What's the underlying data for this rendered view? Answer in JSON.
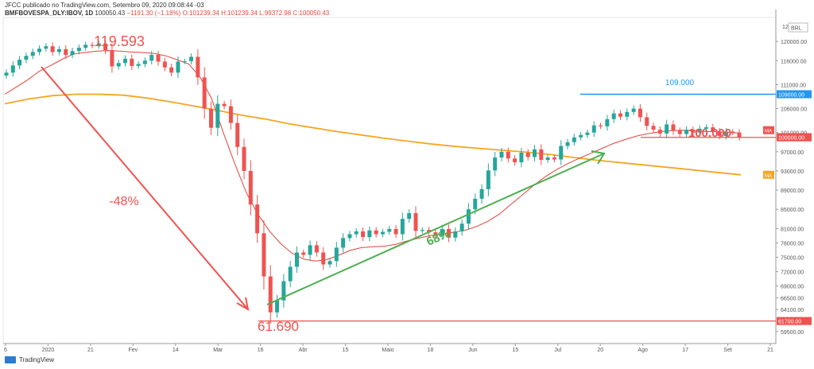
{
  "header": {
    "publisher": "JFCC publicado no TradingView.com, Setembro 09, 2020 09:08:44 -03",
    "symbol": "BMFBOVESPA_DLY:IBOV, 1D",
    "last": "100050.43",
    "change": "−1191.30 (−1.18%)",
    "o": "O:101239.34",
    "h": "H:101239.34",
    "l": "L:99372.98",
    "c": "C:100050.43"
  },
  "footer": {
    "brand": "TradingView"
  },
  "colors": {
    "up": "#26a69a",
    "down": "#ef5350",
    "ma_short": "#e0443a",
    "ma_long": "#f5a623",
    "blue": "#2196f3",
    "green": "#4caf50",
    "red": "#ef5350",
    "axis": "#555555"
  },
  "chart_data": {
    "type": "candlestick",
    "ylim": [
      57000,
      125000
    ],
    "currency_label": "BRL",
    "y_ticks": [
      120000,
      116000,
      111000,
      106000,
      101000,
      97000,
      93000,
      89000,
      85000,
      81000,
      78000,
      75000,
      72000,
      69000,
      66500,
      64100,
      59500
    ],
    "x_ticks": [
      "6",
      "2020",
      "21",
      "Fev",
      "14",
      "Mar",
      "16",
      "Abr",
      "15",
      "Maio",
      "18",
      "Jun",
      "15",
      "Jul",
      "20",
      "Ago",
      "17",
      "Set",
      "21"
    ],
    "price_tags": [
      {
        "label": "109000.00",
        "value": 109000,
        "color": "#2196f3"
      },
      {
        "label": "100050.43",
        "value": 100050,
        "color": "#ef5350"
      },
      {
        "label": "100000.00",
        "value": 100000,
        "color": "#ef5350"
      },
      {
        "label": "61700.00",
        "value": 61700,
        "color": "#ef5350"
      }
    ],
    "indicator_tags": [
      {
        "label": "MA",
        "value": 101500,
        "color": "#ef5350"
      },
      {
        "label": "MA",
        "value": 92200,
        "color": "#f5a623"
      }
    ],
    "top_label": "12",
    "annotations": [
      {
        "text": "119.593",
        "color": "#ef5350"
      },
      {
        "text": "-48%",
        "color": "#ef5350"
      },
      {
        "text": "61.690",
        "color": "#ef5350"
      },
      {
        "text": "68%",
        "color": "#4caf50"
      },
      {
        "text": "109.000",
        "color": "#2196f3"
      },
      {
        "text": "100.000",
        "color": "#ef5350"
      }
    ],
    "closes": [
      113500,
      115000,
      116200,
      117000,
      117800,
      118500,
      119000,
      117800,
      118400,
      117200,
      118000,
      118700,
      119300,
      119100,
      119593,
      118200,
      114800,
      115500,
      116400,
      114900,
      115300,
      116000,
      117200,
      115800,
      114600,
      113500,
      115800,
      115900,
      116800,
      112500,
      106000,
      102000,
      107000,
      106500,
      103000,
      98000,
      93000,
      86000,
      80000,
      71000,
      63500,
      66000,
      70000,
      73000,
      76000,
      75500,
      77500,
      76000,
      73500,
      74200,
      77000,
      79000,
      79800,
      80400,
      79200,
      80600,
      79800,
      80300,
      80900,
      79800,
      83000,
      84200,
      80500,
      80700,
      80200,
      79500,
      80900,
      79100,
      80400,
      82000,
      85000,
      87200,
      89200,
      93100,
      95800,
      97000,
      95600,
      94800,
      96800,
      95900,
      97500,
      95300,
      95800,
      95400,
      98200,
      99000,
      100000,
      100500,
      101000,
      102500,
      102300,
      103800,
      105000,
      104300,
      105300,
      106000,
      104200,
      102400,
      101600,
      100800,
      102700,
      101400,
      100700,
      101600,
      101000,
      101800,
      102100,
      101200,
      100300,
      101200,
      101000,
      100050
    ],
    "ma_short": [
      109000,
      110500,
      112000,
      113800,
      115000,
      116300,
      117400,
      117700,
      118000,
      118100,
      118000,
      117800,
      117700,
      117500,
      117000,
      116200,
      115300,
      112500,
      108000,
      101000,
      94500,
      88500,
      84000,
      80500,
      77800,
      75800,
      74600,
      74200,
      74500,
      75400,
      76400,
      77000,
      77200,
      77300,
      77700,
      78400,
      79000,
      79500,
      79800,
      80200,
      80600,
      81400,
      82500,
      84000,
      86000,
      88000,
      90000,
      91800,
      93300,
      94600,
      95700,
      96700,
      97800,
      98800,
      99600,
      100300,
      100800,
      101200,
      101400,
      101500,
      101300,
      101200,
      101200,
      101000,
      100900
    ],
    "ma_long": [
      107000,
      108000,
      108700,
      109000,
      109000,
      108800,
      108200,
      107400,
      106500,
      105600,
      104600,
      103800,
      102800,
      102000,
      101200,
      100500,
      99800,
      99200,
      98600,
      98100,
      97700,
      97300,
      96900,
      96400,
      95800,
      95200,
      94700,
      94200,
      93700,
      93200,
      92700,
      92200
    ]
  }
}
